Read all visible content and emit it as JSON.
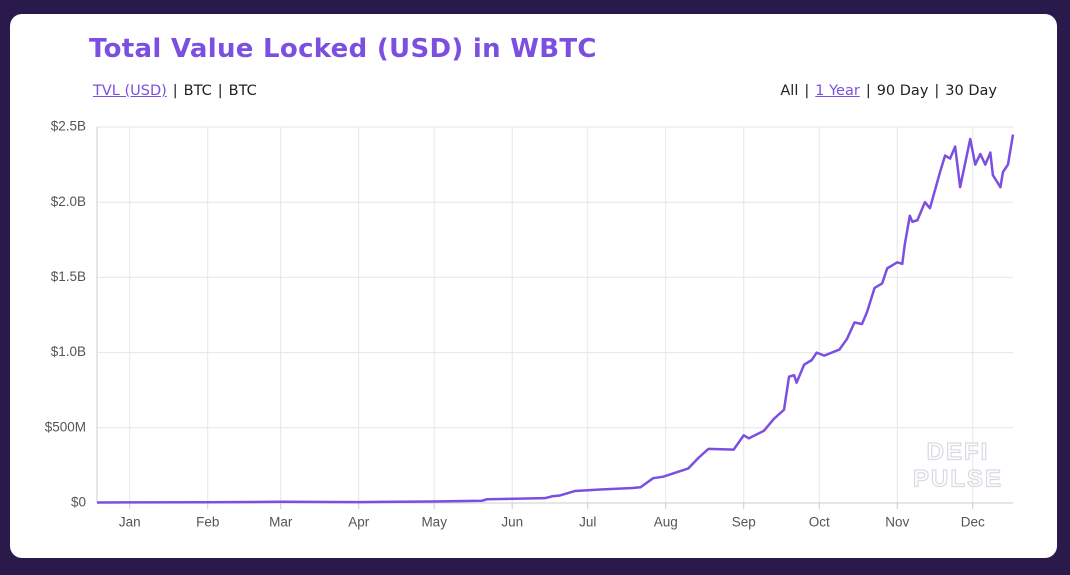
{
  "toolbar": {
    "left": [
      "TVL (USD)",
      "BTC",
      "BTC"
    ],
    "left_active": 0,
    "right": [
      "All",
      "1 Year",
      "90 Day",
      "30 Day"
    ],
    "right_active": 1,
    "separator": "|"
  },
  "watermark": [
    "DEFI",
    "PULSE"
  ],
  "chart_data": {
    "type": "line",
    "title": "Total Value Locked (USD) in WBTC",
    "color": "#7b4fe0",
    "grid": true,
    "x": [
      -13,
      0,
      30,
      60,
      91,
      120,
      140,
      142,
      165,
      168,
      171,
      177,
      187,
      200,
      203,
      208,
      212,
      222,
      226,
      230,
      240,
      244,
      246,
      252,
      256,
      260,
      262,
      264,
      265,
      268,
      271,
      273,
      276,
      282,
      285,
      288,
      291,
      293,
      296,
      299,
      301,
      305,
      307,
      308,
      310,
      311,
      313,
      316,
      318,
      322,
      324,
      326,
      328,
      330,
      334,
      336,
      338,
      340,
      342,
      343,
      346,
      347,
      349,
      351
    ],
    "values": [
      3000000,
      4000000,
      5000000,
      8000000,
      6000000,
      10000000,
      15000000,
      25000000,
      32000000,
      45000000,
      50000000,
      80000000,
      90000000,
      100000000,
      105000000,
      165000000,
      175000000,
      230000000,
      300000000,
      360000000,
      355000000,
      450000000,
      430000000,
      480000000,
      560000000,
      620000000,
      840000000,
      850000000,
      800000000,
      920000000,
      950000000,
      1000000000,
      980000000,
      1020000000,
      1090000000,
      1200000000,
      1190000000,
      1270000000,
      1430000000,
      1460000000,
      1560000000,
      1600000000,
      1590000000,
      1720000000,
      1910000000,
      1870000000,
      1880000000,
      2000000000,
      1960000000,
      2200000000,
      2310000000,
      2290000000,
      2370000000,
      2100000000,
      2420000000,
      2250000000,
      2320000000,
      2250000000,
      2330000000,
      2180000000,
      2100000000,
      2200000000,
      2250000000,
      2450000000
    ],
    "xlim": [
      -13,
      351
    ],
    "xticks": [
      {
        "value": 0,
        "label": "Jan"
      },
      {
        "value": 31,
        "label": "Feb"
      },
      {
        "value": 60,
        "label": "Mar"
      },
      {
        "value": 91,
        "label": "Apr"
      },
      {
        "value": 121,
        "label": "May"
      },
      {
        "value": 152,
        "label": "Jun"
      },
      {
        "value": 182,
        "label": "Jul"
      },
      {
        "value": 213,
        "label": "Aug"
      },
      {
        "value": 244,
        "label": "Sep"
      },
      {
        "value": 274,
        "label": "Oct"
      },
      {
        "value": 305,
        "label": "Nov"
      },
      {
        "value": 335,
        "label": "Dec"
      }
    ],
    "ylim": [
      0,
      2500000000
    ],
    "yticks": [
      {
        "value": 0,
        "label": "$0"
      },
      {
        "value": 500000000,
        "label": "$500M"
      },
      {
        "value": 1000000000,
        "label": "$1.0B"
      },
      {
        "value": 1500000000,
        "label": "$1.5B"
      },
      {
        "value": 2000000000,
        "label": "$2.0B"
      },
      {
        "value": 2500000000,
        "label": "$2.5B"
      }
    ]
  }
}
